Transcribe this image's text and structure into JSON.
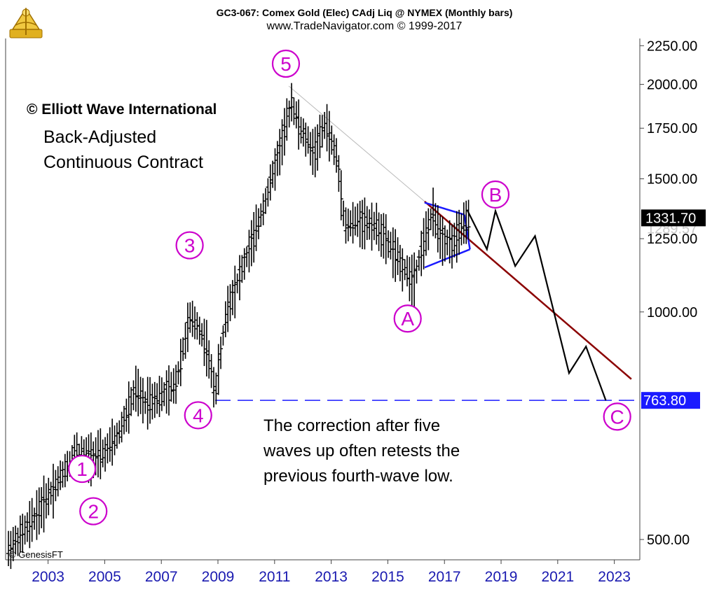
{
  "header": {
    "title": "GC3-067:  Comex Gold (Elec) CAdj Liq @ NYMEX  (Monthly bars)",
    "subtitle": "www.TradeNavigator.com © 1999-2017"
  },
  "annotations": {
    "copyright": "© Elliott Wave International",
    "desc_line1": "Back-Adjusted",
    "desc_line2": "Continuous Contract",
    "note_line1": "The correction after five",
    "note_line2": "waves up often retests the",
    "note_line3": "previous fourth-wave low.",
    "genesis": "© GenesisFT"
  },
  "colors": {
    "wave_label": "#cc00cc",
    "price_bars": "#000000",
    "triangle": "#1a1aff",
    "trendline": "#8b0000",
    "upper_trendline": "#bbbbbb",
    "support_line": "#1a1aff",
    "price_box_current": "#000000",
    "price_box_level": "#1a1aff"
  },
  "chart_data": {
    "type": "bar",
    "interval": "monthly",
    "y_scale": "log",
    "ylim": [
      470,
      2300
    ],
    "xlim": [
      2001.5,
      2023.9
    ],
    "x_ticks": [
      "2003",
      "2005",
      "2007",
      "2009",
      "2011",
      "2013",
      "2015",
      "2017",
      "2019",
      "2021",
      "2023"
    ],
    "x_tick_values": [
      2003,
      2005,
      2007,
      2009,
      2011,
      2013,
      2015,
      2017,
      2019,
      2021,
      2023
    ],
    "y_ticks": [
      "500.00",
      "1000.00",
      "1250.00",
      "1500.00",
      "1750.00",
      "2000.00",
      "2250.00"
    ],
    "y_tick_values": [
      500,
      1000,
      1250,
      1500,
      1750,
      2000,
      2250
    ],
    "price_anchors": [
      {
        "x": 2001.6,
        "y": 485
      },
      {
        "x": 2002.3,
        "y": 520
      },
      {
        "x": 2003.2,
        "y": 585
      },
      {
        "x": 2004.0,
        "y": 655
      },
      {
        "x": 2004.3,
        "y": 640
      },
      {
        "x": 2005.0,
        "y": 650
      },
      {
        "x": 2005.5,
        "y": 690
      },
      {
        "x": 2006.1,
        "y": 790
      },
      {
        "x": 2006.4,
        "y": 760
      },
      {
        "x": 2007.0,
        "y": 775
      },
      {
        "x": 2007.5,
        "y": 800
      },
      {
        "x": 2008.0,
        "y": 980
      },
      {
        "x": 2008.3,
        "y": 960
      },
      {
        "x": 2008.6,
        "y": 900
      },
      {
        "x": 2008.9,
        "y": 780
      },
      {
        "x": 2009.3,
        "y": 1000
      },
      {
        "x": 2009.9,
        "y": 1150
      },
      {
        "x": 2010.4,
        "y": 1300
      },
      {
        "x": 2010.9,
        "y": 1500
      },
      {
        "x": 2011.3,
        "y": 1700
      },
      {
        "x": 2011.6,
        "y": 1900
      },
      {
        "x": 2011.9,
        "y": 1750
      },
      {
        "x": 2012.4,
        "y": 1620
      },
      {
        "x": 2012.8,
        "y": 1780
      },
      {
        "x": 2013.2,
        "y": 1600
      },
      {
        "x": 2013.5,
        "y": 1300
      },
      {
        "x": 2014.0,
        "y": 1320
      },
      {
        "x": 2014.6,
        "y": 1300
      },
      {
        "x": 2015.1,
        "y": 1220
      },
      {
        "x": 2015.5,
        "y": 1150
      },
      {
        "x": 2015.9,
        "y": 1100
      },
      {
        "x": 2016.3,
        "y": 1250
      },
      {
        "x": 2016.6,
        "y": 1350
      },
      {
        "x": 2016.9,
        "y": 1250
      },
      {
        "x": 2017.3,
        "y": 1230
      },
      {
        "x": 2017.7,
        "y": 1310
      },
      {
        "x": 2017.9,
        "y": 1320
      }
    ],
    "projection": [
      {
        "x": 2017.8,
        "y": 1365
      },
      {
        "x": 2018.5,
        "y": 1210
      },
      {
        "x": 2018.8,
        "y": 1360
      },
      {
        "x": 2019.5,
        "y": 1150
      },
      {
        "x": 2020.2,
        "y": 1260
      },
      {
        "x": 2021.4,
        "y": 830
      },
      {
        "x": 2022.0,
        "y": 900
      },
      {
        "x": 2022.7,
        "y": 763.8
      }
    ],
    "triangle": {
      "upper": [
        {
          "x": 2016.3,
          "y": 1395
        },
        {
          "x": 2017.7,
          "y": 1345
        }
      ],
      "lower": [
        {
          "x": 2016.3,
          "y": 1145
        },
        {
          "x": 2017.9,
          "y": 1210
        }
      ],
      "right_edge": [
        {
          "x": 2017.7,
          "y": 1345
        },
        {
          "x": 2017.9,
          "y": 1210
        }
      ]
    },
    "trendline": [
      {
        "x": 2016.3,
        "y": 1400
      },
      {
        "x": 2023.6,
        "y": 815
      }
    ],
    "upper_trendline": [
      {
        "x": 2011.5,
        "y": 1990
      },
      {
        "x": 2016.3,
        "y": 1400
      }
    ],
    "support_level": {
      "value": 763.8,
      "x_start": 2008.9,
      "x_end": 2023.9,
      "label": "763.80"
    },
    "current_price": {
      "value": 1331.7,
      "label": "1331.70"
    },
    "hidden_price": {
      "value": 1289.57,
      "label": "1289.57"
    },
    "wave_labels": [
      {
        "label": "1",
        "x": 2004.2,
        "y": 620
      },
      {
        "label": "2",
        "x": 2004.6,
        "y": 545
      },
      {
        "label": "3",
        "x": 2008.0,
        "y": 1225
      },
      {
        "label": "4",
        "x": 2008.3,
        "y": 730
      },
      {
        "label": "5",
        "x": 2011.4,
        "y": 2130
      },
      {
        "label": "A",
        "x": 2015.7,
        "y": 980
      },
      {
        "label": "B",
        "x": 2018.8,
        "y": 1430
      },
      {
        "label": "C",
        "x": 2023.1,
        "y": 727
      }
    ]
  }
}
